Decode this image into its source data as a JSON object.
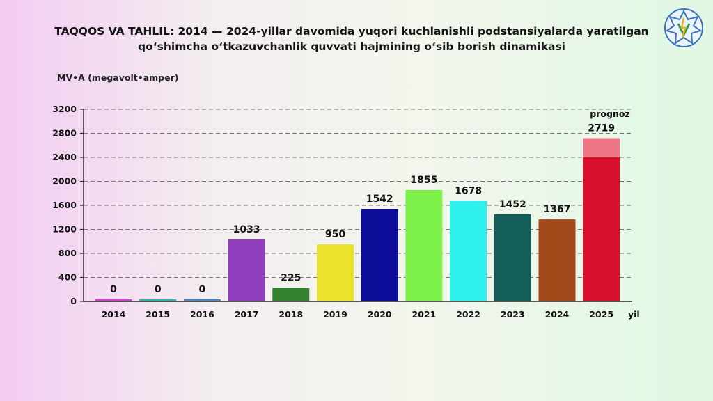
{
  "title_line1": "TAQQOS VA TAHLIL: 2014 — 2024-yillar davomida yuqori kuchlanishli podstansiyalarda yaratilgan",
  "title_line2": "qo‘shimcha o‘tkazuvchanlik quvvati hajmining o‘sib borish dinamikasi",
  "chart_data": {
    "type": "bar",
    "ylabel": "MV•A (megavolt•amper)",
    "xlabel": "yil",
    "ylim": [
      0,
      3200
    ],
    "yticks": [
      0,
      400,
      800,
      1200,
      1600,
      2000,
      2400,
      2800,
      3200
    ],
    "grid": true,
    "categories": [
      "2014",
      "2015",
      "2016",
      "2017",
      "2018",
      "2019",
      "2020",
      "2021",
      "2022",
      "2023",
      "2024",
      "2025"
    ],
    "values": [
      0,
      0,
      0,
      1033,
      225,
      950,
      1542,
      1855,
      1678,
      1452,
      1367,
      2719
    ],
    "data_labels": [
      "0",
      "0",
      "0",
      "1033",
      "225",
      "950",
      "1542",
      "1855",
      "1678",
      "1452",
      "1367",
      "2719"
    ],
    "colors": [
      "#d63ad6",
      "#2fb3a8",
      "#4a86c8",
      "#8f3dbb",
      "#33802e",
      "#ece12c",
      "#0d0d9a",
      "#7df04a",
      "#2ff0ec",
      "#145e5a",
      "#a34a1a",
      "#d9102c"
    ],
    "forecast": {
      "category": "2025",
      "label": "prognoz",
      "highlight_from": 2400,
      "highlight_color": "#f07585"
    }
  }
}
